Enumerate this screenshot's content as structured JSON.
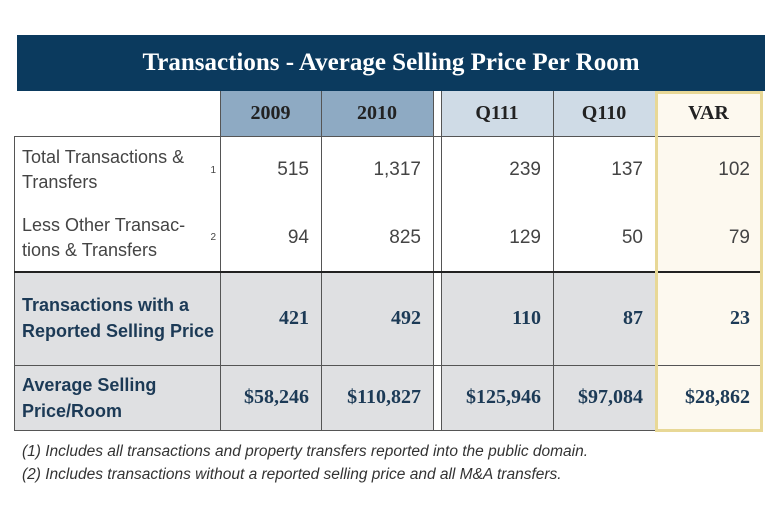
{
  "title": "Transactions - Average Selling Price Per Room",
  "columns": [
    "2009",
    "2010",
    "Q111",
    "Q110",
    "VAR"
  ],
  "rows": [
    {
      "label": "Total Transactions & Transfers",
      "note": "1",
      "values": [
        "515",
        "1,317",
        "239",
        "137",
        "102"
      ]
    },
    {
      "label": "Less Other Transac-tions & Transfers",
      "note": "2",
      "values": [
        "94",
        "825",
        "129",
        "50",
        "79"
      ]
    },
    {
      "label": "Transactions with a Reported Selling Price",
      "note": "",
      "values": [
        "421",
        "492",
        "110",
        "87",
        "23"
      ]
    },
    {
      "label": "Average Selling Price/Room",
      "note": "",
      "values": [
        "$58,246",
        "$110,827",
        "$125,946",
        "$97,084",
        "$28,862"
      ]
    }
  ],
  "footnotes": [
    "(1) Includes all transactions and property transfers reported into the public domain.",
    "(2) Includes transactions without a reported selling price and all M&A transfers."
  ],
  "colors": {
    "title_bg": "#0b3a5e",
    "year_header": "#8eaac3",
    "quarter_header": "#cfdbe6",
    "var_bg": "#fdf9ef",
    "var_border": "#e8d896",
    "summary_bg": "#dfe0e2"
  }
}
